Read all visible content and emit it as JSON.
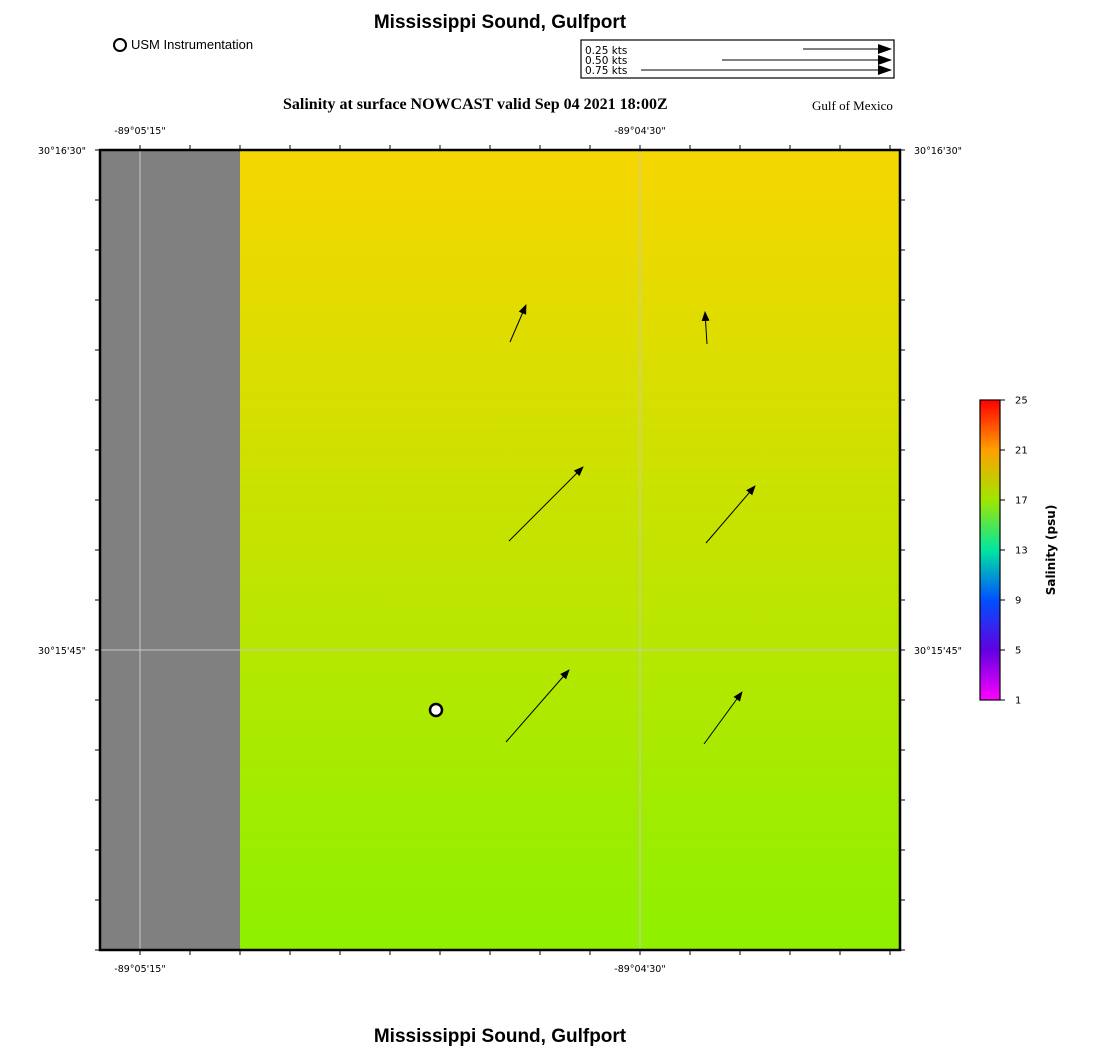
{
  "title": "Mississippi Sound, Gulfport",
  "bottom_title": "Mississippi Sound, Gulfport",
  "legend": {
    "marker_label": "USM Instrumentation"
  },
  "subtitle": "Salinity at surface NOWCAST valid Sep 04 2021 18:00Z",
  "region_label": "Gulf of Mexico",
  "vector_key": [
    {
      "label": "0.25 kts",
      "speed_kts": 0.25
    },
    {
      "label": "0.50 kts",
      "speed_kts": 0.5
    },
    {
      "label": "0.75 kts",
      "speed_kts": 0.75
    }
  ],
  "axes": {
    "lon_labels": [
      "-89°05'15\"",
      "-89°04'30\""
    ],
    "lat_labels": [
      "30°16'30\"",
      "30°15'45\""
    ]
  },
  "colorbar": {
    "title": "Salinity (psu)",
    "ticks": [
      "25",
      "21",
      "17",
      "13",
      "9",
      "5",
      "1"
    ],
    "range": [
      1,
      25
    ]
  },
  "field": {
    "salinity_top_psu": 21.5,
    "salinity_bottom_psu": 18.3
  },
  "currents": [
    {
      "id": "a1",
      "dir_deg": 21,
      "speed_kts": 0.15
    },
    {
      "id": "a2",
      "dir_deg": -5,
      "speed_kts": 0.12
    },
    {
      "id": "a3",
      "dir_deg": 47,
      "speed_kts": 0.37
    },
    {
      "id": "a4",
      "dir_deg": 43,
      "speed_kts": 0.25
    },
    {
      "id": "a5",
      "dir_deg": 43,
      "speed_kts": 0.33
    },
    {
      "id": "a6",
      "dir_deg": 41,
      "speed_kts": 0.2
    }
  ],
  "colors": {
    "land": "#808080",
    "grid": "#c8c8c8",
    "frame": "#000000"
  }
}
